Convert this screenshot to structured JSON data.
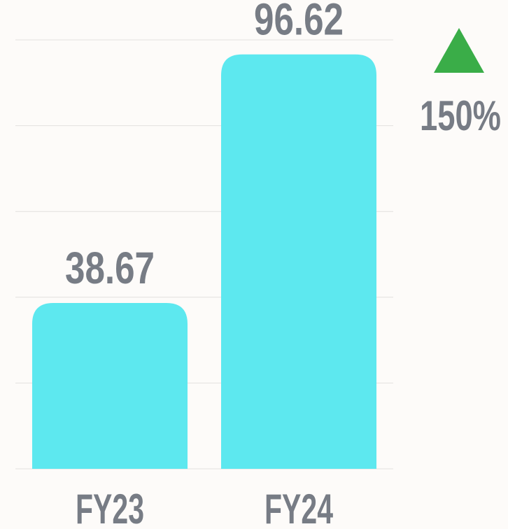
{
  "chart_data": {
    "type": "bar",
    "categories": [
      "FY23",
      "FY24"
    ],
    "values": [
      38.67,
      96.62
    ],
    "color": "#5de8ef",
    "ylim": [
      0,
      100
    ],
    "yticks": [
      0,
      20,
      40,
      60,
      80,
      100
    ],
    "grid": true,
    "annotation": "150%"
  }
}
